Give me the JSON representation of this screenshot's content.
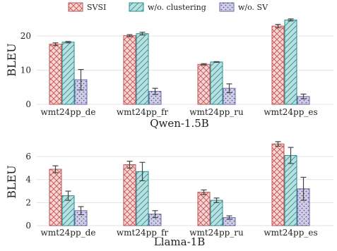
{
  "legend": {
    "entries": [
      {
        "label": "SVSI",
        "pattern": "crosshatch",
        "fill": "#f3d3d3",
        "stroke": "#c0504d"
      },
      {
        "label": "w/o. clustering",
        "pattern": "diagonal",
        "fill": "#b8e0e0",
        "stroke": "#2a8c8c"
      },
      {
        "label": "w/o. SV",
        "pattern": "dots",
        "fill": "#cfcde6",
        "stroke": "#6a67a8"
      }
    ]
  },
  "chart_data": [
    {
      "type": "bar",
      "title": "Qwen-1.5B",
      "ylabel": "BLEU",
      "xlabel": "",
      "ylim": [
        0,
        26
      ],
      "yticks": [
        0,
        10,
        20
      ],
      "grid": true,
      "categories": [
        "wmt24pp_de",
        "wmt24pp_fr",
        "wmt24pp_ru",
        "wmt24pp_es"
      ],
      "series": [
        {
          "name": "SVSI",
          "values": [
            17.6,
            20.1,
            11.7,
            22.9
          ],
          "errors": [
            0.4,
            0.3,
            0.2,
            0.5
          ]
        },
        {
          "name": "w/o. clustering",
          "values": [
            18.2,
            20.7,
            12.4,
            24.7
          ],
          "errors": [
            0.2,
            0.4,
            0.1,
            0.3
          ]
        },
        {
          "name": "w/o. SV",
          "values": [
            7.2,
            3.8,
            4.7,
            2.3
          ],
          "errors": [
            3.0,
            0.9,
            1.3,
            0.7
          ]
        }
      ]
    },
    {
      "type": "bar",
      "title": "Llama-1B",
      "ylabel": "BLEU",
      "xlabel": "",
      "ylim": [
        0,
        7.6
      ],
      "yticks": [
        0,
        2,
        4,
        6
      ],
      "grid": true,
      "categories": [
        "wmt24pp_de",
        "wmt24pp_fr",
        "wmt24pp_ru",
        "wmt24pp_es"
      ],
      "series": [
        {
          "name": "SVSI",
          "values": [
            4.9,
            5.3,
            2.9,
            7.1
          ],
          "errors": [
            0.3,
            0.3,
            0.2,
            0.2
          ]
        },
        {
          "name": "w/o. clustering",
          "values": [
            2.6,
            4.7,
            2.2,
            6.1
          ],
          "errors": [
            0.4,
            0.8,
            0.2,
            0.7
          ]
        },
        {
          "name": "w/o. SV",
          "values": [
            1.3,
            1.0,
            0.7,
            3.2
          ],
          "errors": [
            0.35,
            0.3,
            0.15,
            1.0
          ]
        }
      ]
    }
  ]
}
